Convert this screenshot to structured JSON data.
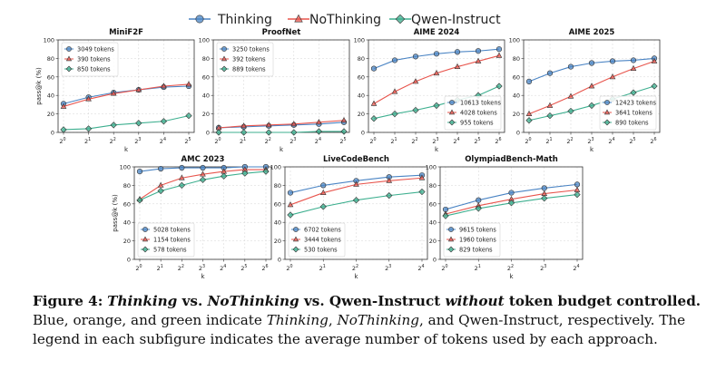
{
  "legend": {
    "series": [
      {
        "name": "Thinking",
        "color": "#4a84c4",
        "marker": "circle"
      },
      {
        "name": "NoThinking",
        "color": "#e8554d",
        "marker": "triangle"
      },
      {
        "name": "Qwen-Instruct",
        "color": "#3daf8f",
        "marker": "diamond"
      }
    ]
  },
  "caption": {
    "figure_label": "Figure 4:",
    "s1": "Thinking",
    "s2": " vs. ",
    "s3": "NoThinking",
    "s4": " vs. Qwen-Instruct ",
    "s5": "without",
    "s6": " token budget controlled.",
    "s7": " Blue, orange, and green indicate ",
    "s8": "Thinking",
    "s9": ", ",
    "s10": "NoThinking",
    "s11": ", and Qwen-Instruct, respectively. The legend in each subfigure indicates the average number of tokens used by each approach."
  },
  "chart_data": [
    {
      "type": "line",
      "title": "MiniF2F",
      "xlabel": "k",
      "ylabel": "pass@k (%)",
      "x": [
        1,
        2,
        4,
        8,
        16,
        32
      ],
      "x_ticks": [
        "0",
        "1",
        "2",
        "3",
        "4",
        "5"
      ],
      "ylim": [
        0,
        100
      ],
      "y_ticks": [
        0,
        20,
        40,
        60,
        80,
        100
      ],
      "legend_position": "top-left",
      "series": [
        {
          "name": "3049 tokens",
          "values": [
            31,
            38,
            43,
            46,
            49,
            50
          ]
        },
        {
          "name": "390 tokens",
          "values": [
            28,
            36,
            42,
            46,
            50,
            52
          ]
        },
        {
          "name": "850 tokens",
          "values": [
            3,
            4,
            8,
            10,
            12,
            18
          ]
        }
      ]
    },
    {
      "type": "line",
      "title": "ProofNet",
      "xlabel": "k",
      "ylabel": "",
      "x": [
        1,
        2,
        4,
        8,
        16,
        32
      ],
      "x_ticks": [
        "0",
        "1",
        "2",
        "3",
        "4",
        "5"
      ],
      "ylim": [
        0,
        100
      ],
      "y_ticks": [
        0,
        20,
        40,
        60,
        80,
        100
      ],
      "legend_position": "top-left",
      "series": [
        {
          "name": "3250 tokens",
          "values": [
            5,
            6,
            7,
            8,
            9,
            11
          ]
        },
        {
          "name": "392 tokens",
          "values": [
            5,
            7,
            8,
            9,
            11,
            13
          ]
        },
        {
          "name": "889 tokens",
          "values": [
            0,
            0,
            0,
            0,
            1,
            1
          ]
        }
      ]
    },
    {
      "type": "line",
      "title": "AIME 2024",
      "xlabel": "k",
      "ylabel": "",
      "x": [
        1,
        2,
        4,
        8,
        16,
        32,
        64
      ],
      "x_ticks": [
        "0",
        "1",
        "2",
        "3",
        "4",
        "5",
        "6"
      ],
      "ylim": [
        0,
        100
      ],
      "y_ticks": [
        0,
        20,
        40,
        60,
        80,
        100
      ],
      "legend_position": "bottom-right",
      "series": [
        {
          "name": "10613 tokens",
          "values": [
            69,
            78,
            82,
            85,
            87,
            88,
            90
          ]
        },
        {
          "name": "4028 tokens",
          "values": [
            31,
            44,
            55,
            64,
            71,
            77,
            83
          ]
        },
        {
          "name": "955 tokens",
          "values": [
            15,
            20,
            24,
            29,
            35,
            40,
            50
          ]
        }
      ]
    },
    {
      "type": "line",
      "title": "AIME 2025",
      "xlabel": "k",
      "ylabel": "",
      "x": [
        1,
        2,
        4,
        8,
        16,
        32,
        64
      ],
      "x_ticks": [
        "0",
        "1",
        "2",
        "3",
        "4",
        "5",
        "6"
      ],
      "ylim": [
        0,
        100
      ],
      "y_ticks": [
        0,
        20,
        40,
        60,
        80,
        100
      ],
      "legend_position": "bottom-right",
      "series": [
        {
          "name": "12423 tokens",
          "values": [
            55,
            64,
            71,
            75,
            77,
            78,
            80
          ]
        },
        {
          "name": "3641 tokens",
          "values": [
            20,
            29,
            39,
            50,
            60,
            69,
            77
          ]
        },
        {
          "name": "890 tokens",
          "values": [
            13,
            18,
            23,
            29,
            36,
            43,
            50
          ]
        }
      ]
    },
    {
      "type": "line",
      "title": "AMC 2023",
      "xlabel": "k",
      "ylabel": "pass@k (%)",
      "x": [
        1,
        2,
        4,
        8,
        16,
        32,
        64
      ],
      "x_ticks": [
        "0",
        "1",
        "2",
        "3",
        "4",
        "5",
        "6"
      ],
      "ylim": [
        0,
        100
      ],
      "y_ticks": [
        0,
        20,
        40,
        60,
        80,
        100
      ],
      "legend_position": "bottom-left",
      "series": [
        {
          "name": "5028 tokens",
          "values": [
            95,
            98,
            99,
            99,
            99,
            100,
            100
          ]
        },
        {
          "name": "1154 tokens",
          "values": [
            65,
            80,
            88,
            92,
            95,
            97,
            97
          ]
        },
        {
          "name": "578 tokens",
          "values": [
            64,
            74,
            80,
            86,
            90,
            93,
            95
          ]
        }
      ]
    },
    {
      "type": "line",
      "title": "LiveCodeBench",
      "xlabel": "k",
      "ylabel": "",
      "x": [
        1,
        2,
        4,
        8,
        16
      ],
      "x_ticks": [
        "0",
        "1",
        "2",
        "3",
        "4"
      ],
      "ylim": [
        0,
        100
      ],
      "y_ticks": [
        0,
        20,
        40,
        60,
        80,
        100
      ],
      "legend_position": "bottom-left",
      "series": [
        {
          "name": "6702 tokens",
          "values": [
            72,
            80,
            85,
            89,
            91
          ]
        },
        {
          "name": "3444 tokens",
          "values": [
            59,
            72,
            81,
            85,
            88
          ]
        },
        {
          "name": "530 tokens",
          "values": [
            48,
            57,
            64,
            69,
            73
          ]
        }
      ]
    },
    {
      "type": "line",
      "title": "OlympiadBench-Math",
      "xlabel": "k",
      "ylabel": "",
      "x": [
        1,
        2,
        4,
        8,
        16
      ],
      "x_ticks": [
        "0",
        "1",
        "2",
        "3",
        "4"
      ],
      "ylim": [
        0,
        100
      ],
      "y_ticks": [
        0,
        20,
        40,
        60,
        80,
        100
      ],
      "legend_position": "bottom-left",
      "series": [
        {
          "name": "9615 tokens",
          "values": [
            54,
            64,
            72,
            77,
            81
          ]
        },
        {
          "name": "1960 tokens",
          "values": [
            49,
            58,
            65,
            71,
            75
          ]
        },
        {
          "name": "829 tokens",
          "values": [
            47,
            55,
            61,
            66,
            70
          ]
        }
      ]
    }
  ]
}
